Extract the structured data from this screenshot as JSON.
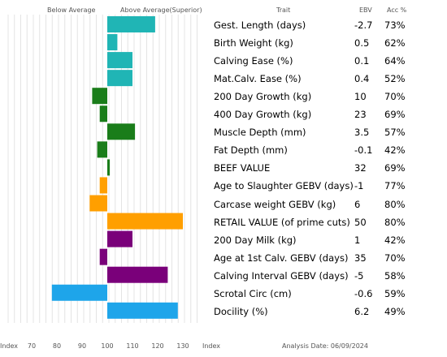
{
  "header": {
    "below_label": "Below Average",
    "above_label": "Above Average(Superior)",
    "trait_label": "Trait",
    "ebv_label": "EBV",
    "acc_label": "Acc %"
  },
  "footer": {
    "index_left": "Index",
    "index_right": "Index",
    "analysis_date": "Analysis Date: 06/09/2024"
  },
  "colors": {
    "teal": "#20b5b5",
    "green": "#1a7d1a",
    "orange": "#ff9f00",
    "purple": "#7a007a",
    "blue": "#1ea5ea",
    "grid": "#e4e4e4"
  },
  "chart_data": {
    "type": "bar",
    "orientation": "horizontal",
    "baseline": 100,
    "xlim": [
      60,
      130
    ],
    "xticks": [
      70,
      80,
      90,
      100,
      110,
      120,
      130
    ],
    "grid": true,
    "rows": [
      {
        "trait": "Gest. Length (days)",
        "ebv": "-2.7",
        "acc": "73%",
        "index": 119,
        "color": "teal"
      },
      {
        "trait": "Birth Weight (kg)",
        "ebv": "0.5",
        "acc": "62%",
        "index": 104,
        "color": "teal"
      },
      {
        "trait": "Calving Ease (%)",
        "ebv": "0.1",
        "acc": "64%",
        "index": 110,
        "color": "teal"
      },
      {
        "trait": "Mat.Calv. Ease (%)",
        "ebv": "0.4",
        "acc": "52%",
        "index": 110,
        "color": "teal"
      },
      {
        "trait": "200 Day Growth (kg)",
        "ebv": "10",
        "acc": "70%",
        "index": 94,
        "color": "green"
      },
      {
        "trait": "400 Day Growth (kg)",
        "ebv": "23",
        "acc": "69%",
        "index": 97,
        "color": "green"
      },
      {
        "trait": "Muscle Depth (mm)",
        "ebv": "3.5",
        "acc": "57%",
        "index": 111,
        "color": "green"
      },
      {
        "trait": "Fat Depth (mm)",
        "ebv": "-0.1",
        "acc": "42%",
        "index": 96,
        "color": "green"
      },
      {
        "trait": "BEEF VALUE",
        "ebv": "32",
        "acc": "69%",
        "index": 101,
        "color": "green"
      },
      {
        "trait": "Age to Slaughter GEBV (days)",
        "ebv": "-1",
        "acc": "77%",
        "index": 97,
        "color": "orange"
      },
      {
        "trait": "Carcase weight GEBV (kg)",
        "ebv": "6",
        "acc": "80%",
        "index": 93,
        "color": "orange"
      },
      {
        "trait": "RETAIL VALUE (of prime cuts)",
        "ebv": "50",
        "acc": "80%",
        "index": 130,
        "color": "orange"
      },
      {
        "trait": "200 Day Milk (kg)",
        "ebv": "1",
        "acc": "42%",
        "index": 110,
        "color": "purple"
      },
      {
        "trait": "Age at 1st Calv. GEBV (days)",
        "ebv": "35",
        "acc": "70%",
        "index": 97,
        "color": "purple"
      },
      {
        "trait": "Calving Interval GEBV (days)",
        "ebv": "-5",
        "acc": "58%",
        "index": 124,
        "color": "purple"
      },
      {
        "trait": "Scrotal Circ (cm)",
        "ebv": "-0.6",
        "acc": "59%",
        "index": 78,
        "color": "blue"
      },
      {
        "trait": "Docility (%)",
        "ebv": "6.2",
        "acc": "49%",
        "index": 128,
        "color": "blue"
      }
    ]
  }
}
